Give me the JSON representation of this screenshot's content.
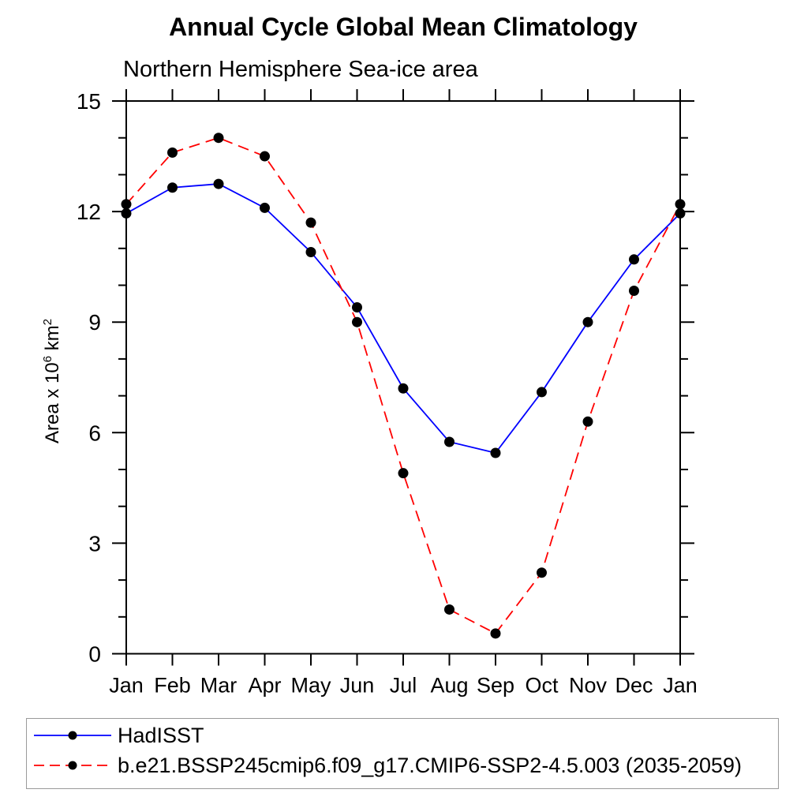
{
  "chart_data": {
    "type": "line",
    "title": "Annual Cycle Global Mean Climatology",
    "subtitle": "Northern Hemisphere Sea-ice area",
    "ylabel": {
      "p1": "Area x 10",
      "sup1": "6",
      "p2": " km",
      "sup2": "2"
    },
    "xlabel": "",
    "categories": [
      "Jan",
      "Feb",
      "Mar",
      "Apr",
      "May",
      "Jun",
      "Jul",
      "Aug",
      "Sep",
      "Oct",
      "Nov",
      "Dec",
      "Jan"
    ],
    "ylim": [
      0,
      15
    ],
    "y_major_ticks": [
      0,
      3,
      6,
      9,
      12,
      15
    ],
    "y_minor_step": 1,
    "grid": false,
    "tick_direction": "outward",
    "legend_position": "bottom-left",
    "series": [
      {
        "name": "HadISST",
        "color": "#0000ff",
        "style": "solid",
        "marker": "filled-circle",
        "marker_color": "#000000",
        "values": [
          11.95,
          12.65,
          12.75,
          12.1,
          10.9,
          9.4,
          7.2,
          5.75,
          5.45,
          7.1,
          9.0,
          10.7,
          11.95
        ]
      },
      {
        "name": "b.e21.BSSP245cmip6.f09_g17.CMIP6-SSP2-4.5.003 (2035-2059)",
        "color": "#ff0000",
        "style": "dashed",
        "marker": "filled-circle",
        "marker_color": "#000000",
        "values": [
          12.2,
          13.6,
          14.0,
          13.5,
          11.7,
          9.0,
          4.9,
          1.2,
          0.55,
          2.2,
          6.3,
          9.85,
          12.2
        ]
      }
    ],
    "colors": {
      "axis": "#000000",
      "text": "#000000",
      "background": "#ffffff",
      "legend_border": "#9a9a9a"
    }
  }
}
